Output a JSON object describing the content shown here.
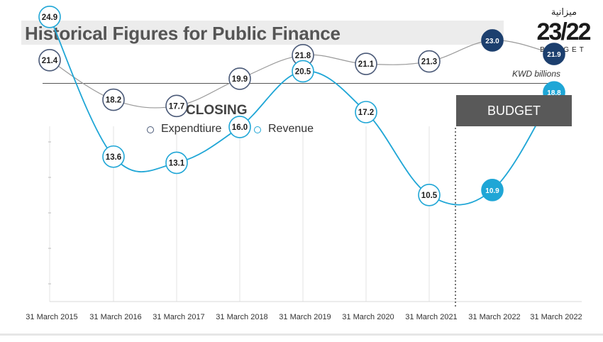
{
  "header": {
    "title": "Historical Figures for Public Finance",
    "logo_arabic": "ميزانية",
    "logo_number": "23/22",
    "logo_word": "BUDGET",
    "unit": "KWD billions"
  },
  "chart_data": {
    "type": "line",
    "title": "",
    "section_labels": {
      "closing": "CLOSING",
      "budget": "BUDGET"
    },
    "categories": [
      "31 March 2015",
      "31 March 2016",
      "31 March 2017",
      "31 March 2018",
      "31 March 2019",
      "31 March 2020",
      "31 March 2021",
      "31 March 2022",
      "31 March 2022"
    ],
    "series": [
      {
        "name": "Expendtiure",
        "values": [
          21.4,
          18.2,
          17.7,
          19.9,
          21.8,
          21.1,
          21.3,
          23.0,
          21.9
        ],
        "color": "#9a9a9a",
        "marker_color": "#4b5a78",
        "budget_fill": "#1c3f6e"
      },
      {
        "name": "Revenue",
        "values": [
          24.9,
          13.6,
          13.1,
          16.0,
          20.5,
          17.2,
          10.5,
          10.9,
          18.8
        ],
        "color": "#1fa6d6",
        "marker_color": "#1fa6d6",
        "budget_fill": "#1fa6d6"
      }
    ],
    "budget_start_index": 7,
    "xlabel": "",
    "ylabel": "",
    "grid": true
  }
}
